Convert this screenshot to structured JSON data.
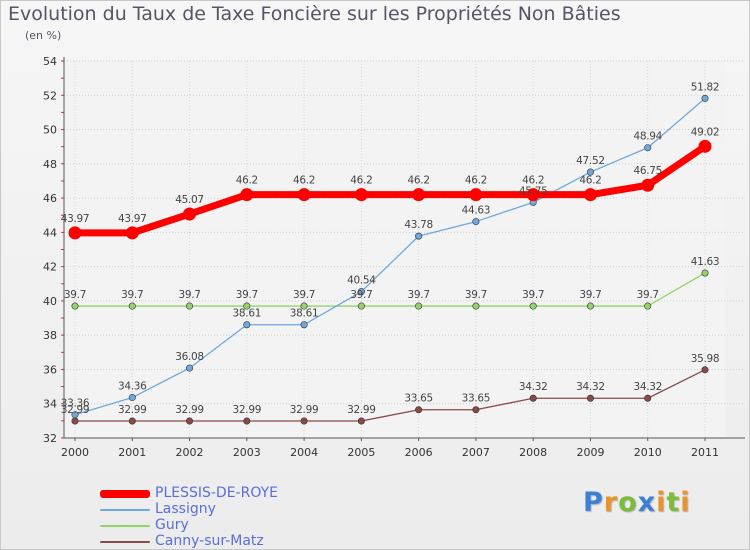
{
  "page": {
    "title": "Evolution du Taux de Taxe Foncière sur les Propriétés Non Bâties",
    "unit": "(en %)"
  },
  "chart_data": {
    "type": "line",
    "title": "Evolution du Taux de Taxe Foncière sur les Propriétés Non Bâties",
    "ylabel": "(en %)",
    "xlabel": "",
    "ylim": [
      32,
      54
    ],
    "yticks": [
      32,
      34,
      36,
      38,
      40,
      42,
      44,
      46,
      48,
      50,
      52,
      54
    ],
    "grid": true,
    "legend_position": "bottom-left",
    "x": [
      "2000",
      "2001",
      "2002",
      "2003",
      "2004",
      "2005",
      "2006",
      "2007",
      "2008",
      "2009",
      "2010",
      "2011"
    ],
    "series": [
      {
        "name": "PLESSIS-DE-ROYE",
        "color": "#ff0000",
        "values": [
          43.97,
          43.97,
          45.07,
          46.2,
          46.2,
          46.2,
          46.2,
          46.2,
          46.2,
          46.2,
          46.75,
          49.02
        ],
        "labels": [
          "43.97",
          "43.97",
          "45.07",
          "46.2",
          "46.2",
          "46.2",
          "46.2",
          "46.2",
          "46.2",
          "46.2",
          "46.75",
          "49.02"
        ]
      },
      {
        "name": "Lassigny",
        "color": "#6fa8dc",
        "values": [
          33.36,
          34.36,
          36.08,
          38.61,
          38.61,
          40.54,
          43.78,
          44.63,
          45.75,
          47.52,
          48.94,
          51.82
        ],
        "labels": [
          "33.36",
          "34.36",
          "36.08",
          "38.61",
          "38.61",
          "40.54",
          "43.78",
          "44.63",
          "45.75",
          "47.52",
          "48.94",
          "51.82"
        ]
      },
      {
        "name": "Gury",
        "color": "#93d36a",
        "values": [
          39.7,
          39.7,
          39.7,
          39.7,
          39.7,
          39.7,
          39.7,
          39.7,
          39.7,
          39.7,
          39.7,
          41.63
        ],
        "labels": [
          "39.7",
          "39.7",
          "39.7",
          "39.7",
          "39.7",
          "39.7",
          "39.7",
          "39.7",
          "39.7",
          "39.7",
          "39.7",
          "41.63"
        ]
      },
      {
        "name": "Canny-sur-Matz",
        "color": "#8a4a4a",
        "values": [
          32.99,
          32.99,
          32.99,
          32.99,
          32.99,
          32.99,
          33.65,
          33.65,
          34.32,
          34.32,
          34.32,
          35.98
        ],
        "labels": [
          "32.99",
          "32.99",
          "32.99",
          "32.99",
          "32.99",
          "32.99",
          "33.65",
          "33.65",
          "34.32",
          "34.32",
          "34.32",
          "35.98"
        ]
      }
    ]
  },
  "logo": {
    "letters": [
      "P",
      "r",
      "o",
      "x",
      "i",
      "t",
      "i"
    ],
    "colors": [
      "#3d7fd6",
      "#e8942a",
      "#7cbb3c",
      "#3d7fd6",
      "#e8942a",
      "#7cbb3c",
      "#e8942a"
    ]
  }
}
